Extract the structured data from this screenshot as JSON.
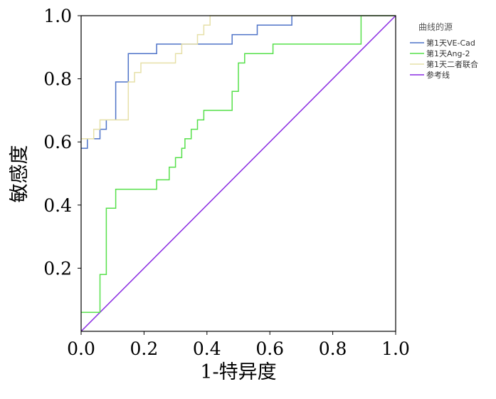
{
  "chart_data": {
    "type": "line",
    "title": "",
    "xlabel": "1-特异度",
    "ylabel": "敏感度",
    "xlim": [
      0,
      1
    ],
    "ylim": [
      0,
      1
    ],
    "x_ticks": [
      "0.0",
      "0.2",
      "0.4",
      "0.6",
      "0.8",
      "1.0"
    ],
    "y_ticks": [
      "0.2",
      "0.4",
      "0.6",
      "0.8",
      "1.0"
    ],
    "grid": false,
    "legend": {
      "title": "曲线的源",
      "placement": "top-right"
    },
    "series": [
      {
        "name": "第1天VE-Cad",
        "color": "#4f73c8",
        "points": [
          [
            0,
            0.58
          ],
          [
            0.02,
            0.58
          ],
          [
            0.02,
            0.61
          ],
          [
            0.06,
            0.61
          ],
          [
            0.06,
            0.64
          ],
          [
            0.08,
            0.64
          ],
          [
            0.08,
            0.67
          ],
          [
            0.11,
            0.67
          ],
          [
            0.11,
            0.79
          ],
          [
            0.15,
            0.79
          ],
          [
            0.15,
            0.88
          ],
          [
            0.24,
            0.88
          ],
          [
            0.24,
            0.91
          ],
          [
            0.48,
            0.91
          ],
          [
            0.48,
            0.94
          ],
          [
            0.56,
            0.94
          ],
          [
            0.56,
            0.97
          ],
          [
            0.67,
            0.97
          ],
          [
            0.67,
            1.0
          ],
          [
            1.0,
            1.0
          ]
        ]
      },
      {
        "name": "第1天Ang-2",
        "color": "#56e04a",
        "points": [
          [
            0,
            0.06
          ],
          [
            0.06,
            0.06
          ],
          [
            0.06,
            0.18
          ],
          [
            0.08,
            0.18
          ],
          [
            0.08,
            0.39
          ],
          [
            0.11,
            0.39
          ],
          [
            0.11,
            0.45
          ],
          [
            0.24,
            0.45
          ],
          [
            0.24,
            0.48
          ],
          [
            0.28,
            0.48
          ],
          [
            0.28,
            0.52
          ],
          [
            0.3,
            0.52
          ],
          [
            0.3,
            0.55
          ],
          [
            0.32,
            0.55
          ],
          [
            0.32,
            0.58
          ],
          [
            0.33,
            0.58
          ],
          [
            0.33,
            0.61
          ],
          [
            0.35,
            0.61
          ],
          [
            0.35,
            0.64
          ],
          [
            0.37,
            0.64
          ],
          [
            0.37,
            0.67
          ],
          [
            0.39,
            0.67
          ],
          [
            0.39,
            0.7
          ],
          [
            0.48,
            0.7
          ],
          [
            0.48,
            0.76
          ],
          [
            0.5,
            0.76
          ],
          [
            0.5,
            0.85
          ],
          [
            0.52,
            0.85
          ],
          [
            0.52,
            0.88
          ],
          [
            0.61,
            0.88
          ],
          [
            0.61,
            0.91
          ],
          [
            0.89,
            0.91
          ],
          [
            0.89,
            1.0
          ],
          [
            1.0,
            1.0
          ]
        ]
      },
      {
        "name": "第1天二者联合",
        "color": "#e6e0a8",
        "points": [
          [
            0,
            0.61
          ],
          [
            0.04,
            0.61
          ],
          [
            0.04,
            0.64
          ],
          [
            0.06,
            0.64
          ],
          [
            0.06,
            0.67
          ],
          [
            0.15,
            0.67
          ],
          [
            0.15,
            0.79
          ],
          [
            0.17,
            0.79
          ],
          [
            0.17,
            0.82
          ],
          [
            0.19,
            0.82
          ],
          [
            0.19,
            0.85
          ],
          [
            0.3,
            0.85
          ],
          [
            0.3,
            0.88
          ],
          [
            0.32,
            0.88
          ],
          [
            0.32,
            0.91
          ],
          [
            0.37,
            0.91
          ],
          [
            0.37,
            0.94
          ],
          [
            0.39,
            0.94
          ],
          [
            0.39,
            0.97
          ],
          [
            0.41,
            0.97
          ],
          [
            0.41,
            1.0
          ],
          [
            1.0,
            1.0
          ]
        ]
      },
      {
        "name": "参考线",
        "color": "#8a2be2",
        "points": [
          [
            0,
            0
          ],
          [
            1,
            1
          ]
        ]
      }
    ]
  }
}
